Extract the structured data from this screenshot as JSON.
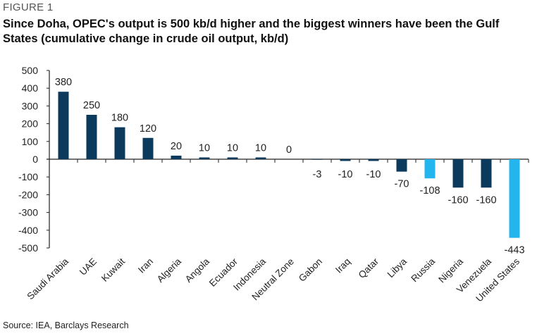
{
  "figure_label": "FIGURE 1",
  "source": "Source: IEA, Barclays Research",
  "colors": {
    "dark": "#0b3a5d",
    "light": "#22b5ee"
  },
  "chart_data": {
    "type": "bar",
    "title": "Since Doha, OPEC's output is 500 kb/d higher and the biggest winners have been the Gulf States (cumulative change in crude oil output, kb/d)",
    "xlabel": "",
    "ylabel": "",
    "ylim": [
      -500,
      500
    ],
    "yticks": [
      500,
      400,
      300,
      200,
      100,
      0,
      -100,
      -200,
      -300,
      -400,
      -500
    ],
    "grid": false,
    "categories": [
      "Saudi Arabia",
      "UAE",
      "Kuwait",
      "Iran",
      "Algeria",
      "Angola",
      "Ecuador",
      "Indonesia",
      "Neutral Zone",
      "Gabon",
      "Iraq",
      "Qatar",
      "Libya",
      "Russia",
      "Nigeria",
      "Venezuela",
      "United States"
    ],
    "values": [
      380,
      250,
      180,
      120,
      20,
      10,
      10,
      10,
      0,
      -3,
      -10,
      -10,
      -70,
      -108,
      -160,
      -160,
      -443
    ],
    "highlight": [
      "Russia",
      "United States"
    ]
  }
}
